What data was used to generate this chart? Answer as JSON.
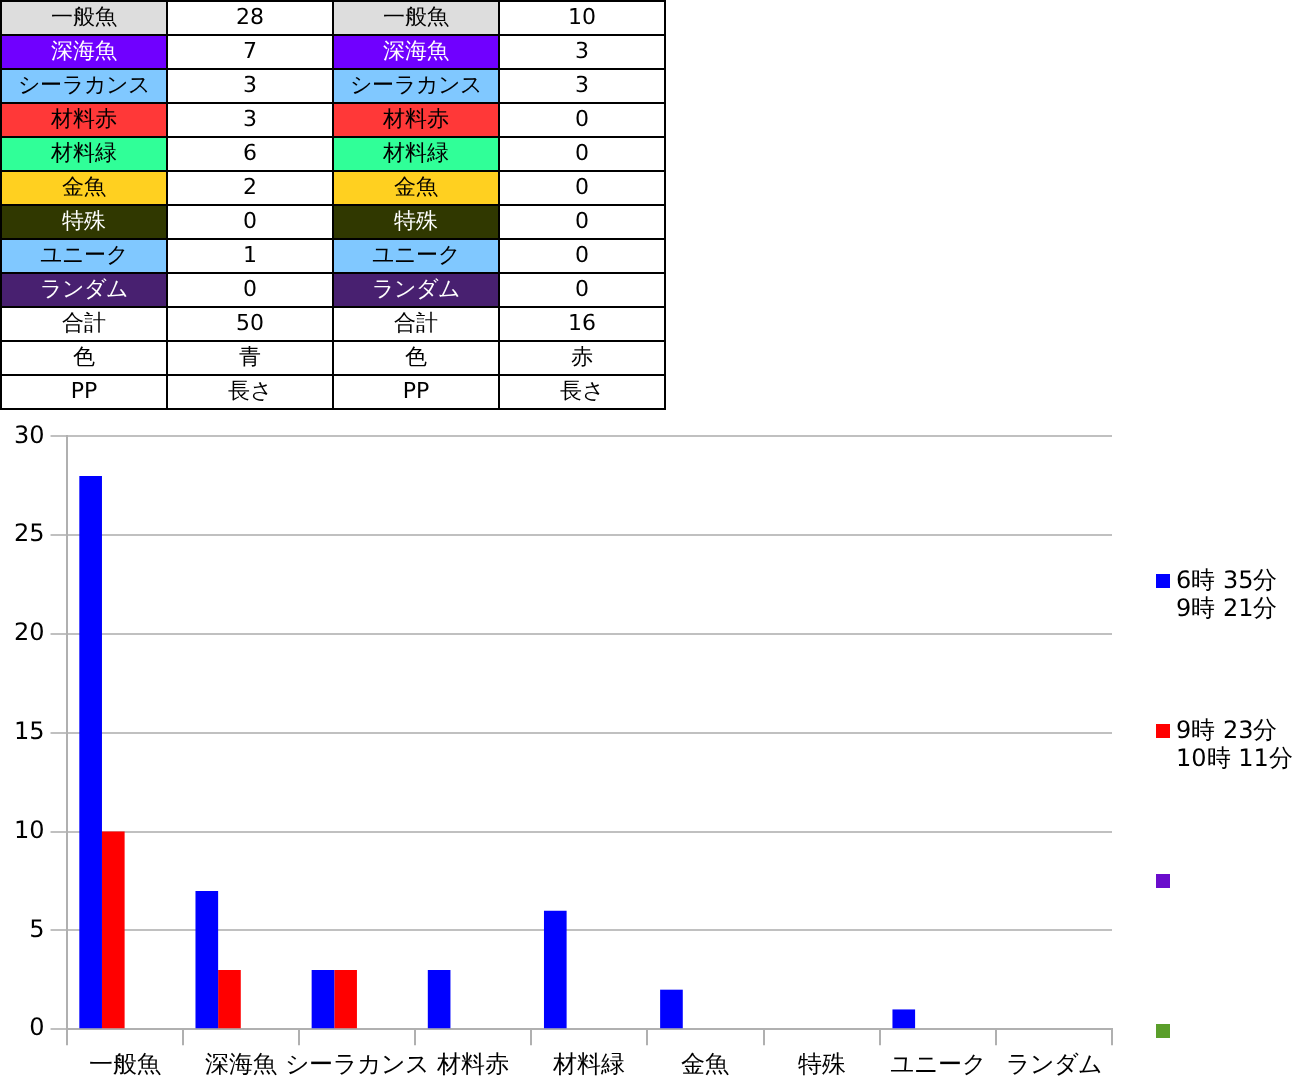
{
  "chart_data": {
    "type": "bar",
    "categories": [
      "一般魚",
      "深海魚",
      "シーラカンス",
      "材料赤",
      "材料緑",
      "金魚",
      "特殊",
      "ユニーク",
      "ランダム"
    ],
    "series": [
      {
        "name": "6時 35分\n9時 21分",
        "color": "#0000ff",
        "values": [
          28,
          7,
          3,
          3,
          6,
          2,
          0,
          1,
          0
        ]
      },
      {
        "name": "9時 23分\n10時 11分",
        "color": "#ff0000",
        "values": [
          10,
          3,
          3,
          0,
          0,
          0,
          0,
          0,
          0
        ]
      },
      {
        "color": "#6a0dcc",
        "values": [
          null,
          null,
          null,
          null,
          null,
          null,
          null,
          null,
          null
        ]
      },
      {
        "color": "#5a9e2a",
        "values": [
          null,
          null,
          null,
          null,
          null,
          null,
          null,
          null,
          null
        ]
      }
    ],
    "ylim": [
      0,
      30
    ],
    "yticks": [
      0,
      5,
      10,
      15,
      20,
      25,
      30
    ],
    "grid": "y",
    "legend": "right",
    "annotations": [
      "一般魚",
      "28",
      "一般魚",
      "10",
      "深海魚",
      "7",
      "深海魚",
      "3",
      "シーラカンス",
      "3",
      "シーラカンス",
      "3",
      "材料赤",
      "3",
      "材料赤",
      "0",
      "材料緑",
      "6",
      "材料緑",
      "0",
      "金魚",
      "2",
      "金魚",
      "0",
      "特殊",
      "0",
      "特殊",
      "0",
      "ユニーク",
      "1",
      "ユニーク",
      "0",
      "ランダム",
      "0",
      "ランダム",
      "0",
      "合計",
      "50",
      "合計",
      "16",
      "色",
      "青",
      "色",
      "赤",
      "PP",
      "長さ",
      "PP",
      "長さ"
    ]
  }
}
